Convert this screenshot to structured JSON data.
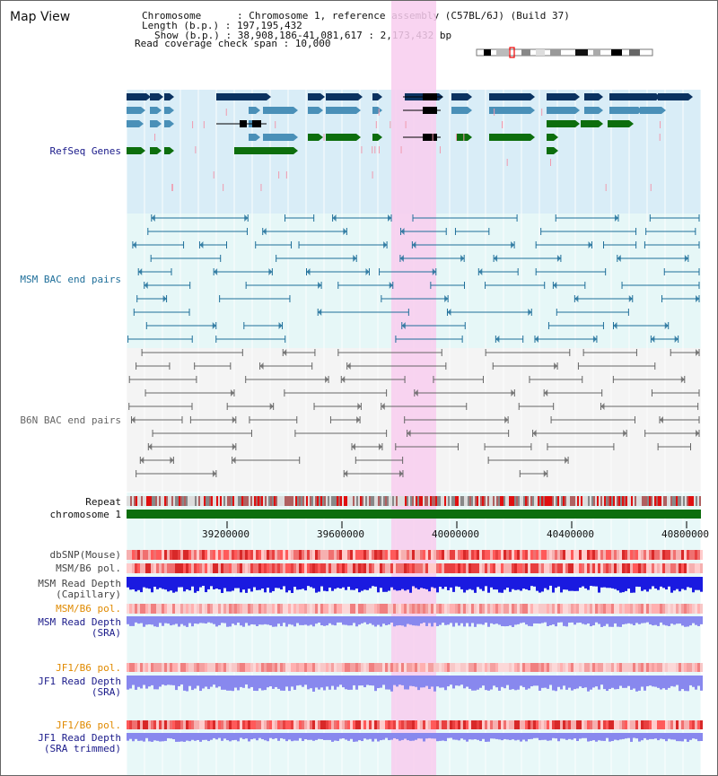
{
  "view_title": "Map View",
  "header": {
    "chromosome_line": "Chromosome      : Chromosome 1, reference assembly (C57BL/6J) (Build 37)",
    "length_line": "Length (b.p.) : 197,195,432",
    "show_line": "Show (b.p.) : 38,908,186-41,081,617 : 2,173,432 bp",
    "coverage_line": "Read coverage check span : 10,000"
  },
  "tracks": {
    "refseq": "RefSeq Genes",
    "msm_bac": "MSM BAC end pairs",
    "b6n_bac": "B6N BAC end pairs",
    "repeat": "Repeat",
    "chromosome": "chromosome 1",
    "dbsnp": "dbSNP(Mouse)",
    "msm_b6_pol": "MSM/B6 pol.",
    "msm_depth_cap_1": "MSM Read Depth",
    "msm_depth_cap_2": "(Capillary)",
    "msm_b6_pol_sra": "MSM/B6 pol.",
    "msm_depth_sra_1": "MSM Read Depth",
    "msm_depth_sra_2": "(SRA)",
    "jf1_b6_pol": "JF1/B6 pol.",
    "jf1_depth_sra_1": "JF1 Read Depth",
    "jf1_depth_sra_2": "(SRA)",
    "jf1_b6_pol_trim": "JF1/B6 pol.",
    "jf1_depth_trim_1": "JF1 Read Depth",
    "jf1_depth_trim_2": "(SRA trimmed)"
  },
  "axis_ticks": [
    "39200000",
    "39600000",
    "40000000",
    "40400000",
    "40800000"
  ],
  "colors": {
    "refseq_bg": "#d9edf7",
    "msm_bg": "#e6f7f7",
    "b6n_bg": "#f4f4f4",
    "highlight": "#f8cdef",
    "gene_navy": "#0b3260",
    "gene_steel": "#4a90b8",
    "gene_green": "#0d6e0d",
    "chromosome_bar": "#0d6e0d",
    "depth_blue": "#1a1ae0",
    "depth_lavender": "#8888ee",
    "label_navy": "#1a1a8a",
    "label_orange": "#e08a00"
  }
}
